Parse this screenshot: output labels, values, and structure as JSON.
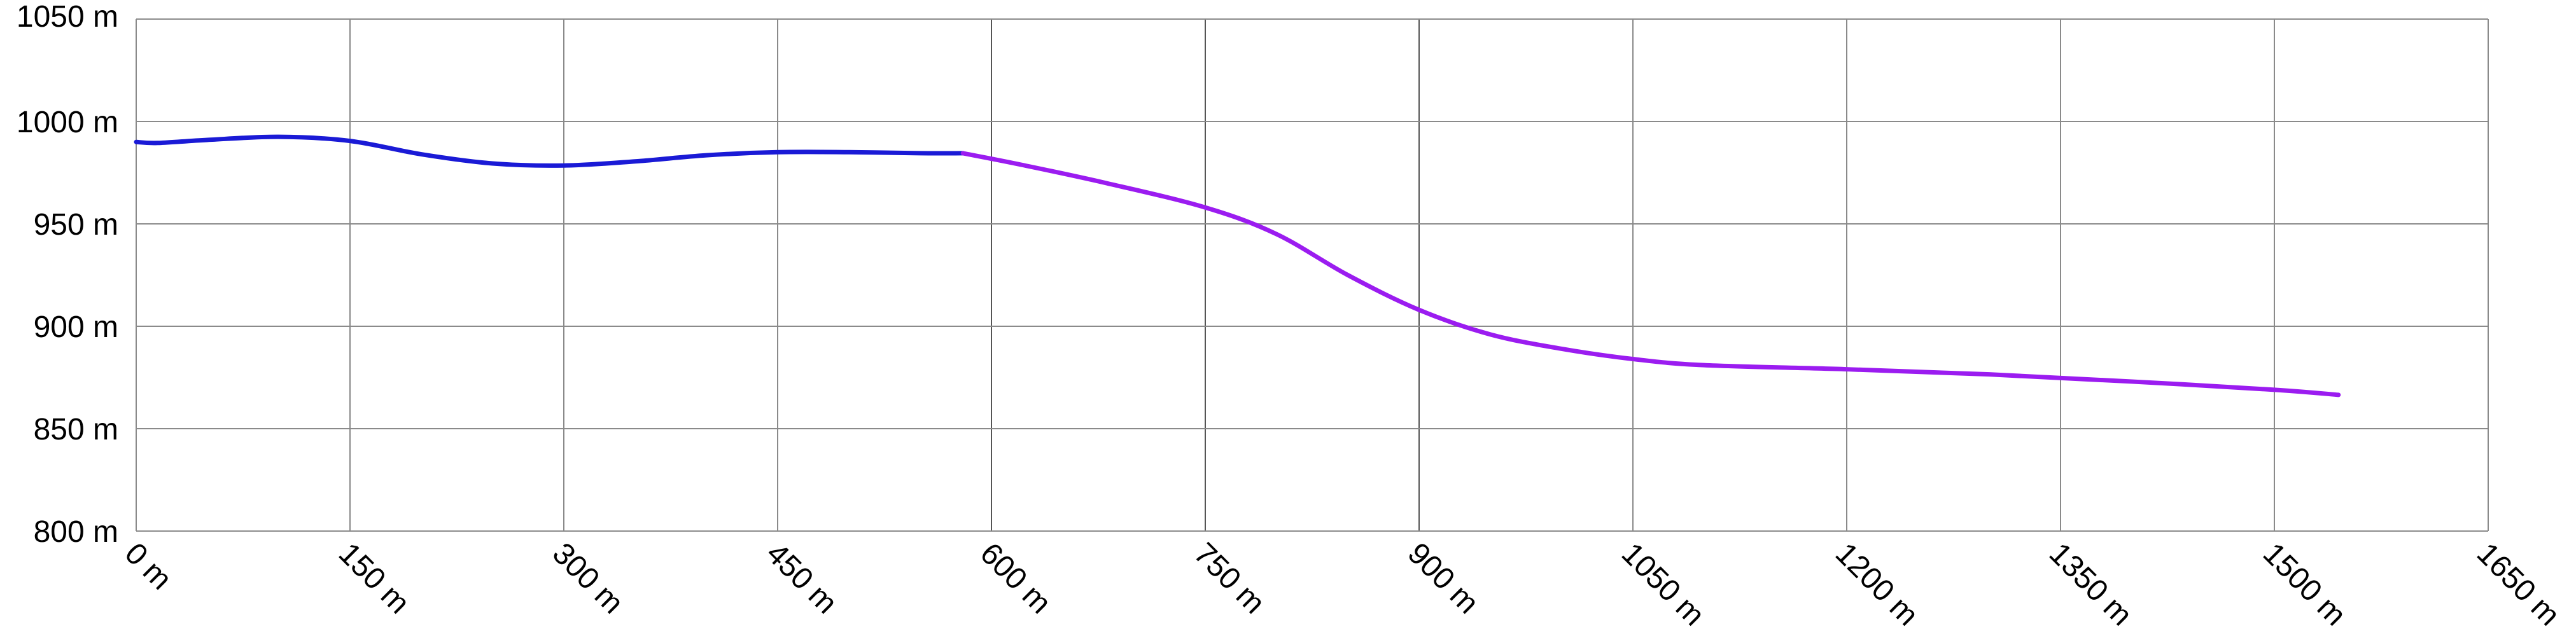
{
  "chart_data": {
    "type": "line",
    "title": "",
    "xlabel": "",
    "ylabel": "",
    "xlim": [
      0,
      1650
    ],
    "ylim": [
      800,
      1050
    ],
    "x_ticks": [
      0,
      150,
      300,
      450,
      600,
      750,
      900,
      1050,
      1200,
      1350,
      1500,
      1650
    ],
    "x_tick_labels": [
      "0 m",
      "150 m",
      "300 m",
      "450 m",
      "600 m",
      "750 m",
      "900 m",
      "1050 m",
      "1200 m",
      "1350 m",
      "1500 m",
      "1650 m"
    ],
    "y_ticks": [
      800,
      850,
      900,
      950,
      1000,
      1050
    ],
    "y_tick_labels": [
      "800 m",
      "850 m",
      "900 m",
      "950 m",
      "1000 m",
      "1050 m"
    ],
    "grid": true,
    "legend": "none",
    "series": [
      {
        "color": "#1a1ad6",
        "x": [
          0,
          15,
          50,
          100,
          150,
          200,
          250,
          300,
          350,
          400,
          450,
          500,
          550,
          580
        ],
        "y": [
          990,
          989.5,
          991,
          992.5,
          990.5,
          984,
          979.5,
          978.5,
          980.5,
          983.5,
          985,
          985,
          984.5,
          984.5
        ]
      },
      {
        "color": "#9b1cf0",
        "x": [
          580,
          620,
          680,
          750,
          800,
          850,
          900,
          950,
          1000,
          1050,
          1100,
          1200,
          1300,
          1400,
          1500,
          1545
        ],
        "y": [
          984.5,
          979,
          970,
          958,
          945,
          925,
          908,
          896,
          889,
          884,
          881,
          879,
          876.5,
          873,
          869,
          866.5
        ]
      }
    ]
  }
}
